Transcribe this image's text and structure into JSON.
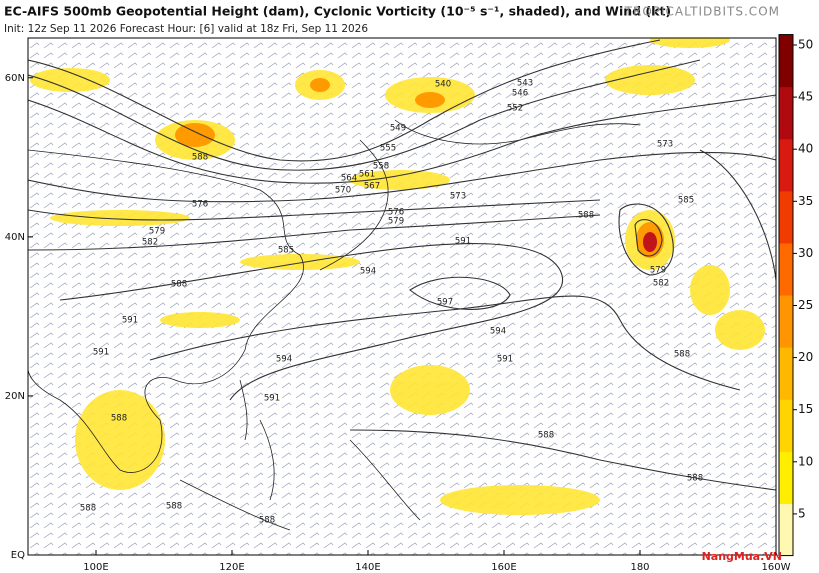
{
  "header": {
    "title": "EC-AIFS 500mb Geopotential Height (dam), Cyclonic Vorticity (10⁻⁵ s⁻¹, shaded), and Wind (kt)",
    "subtitle": "Init: 12z Sep 11 2026   Forecast Hour: [6]   valid at 18z Fri, Sep 11 2026",
    "site": "TROPICALTIDBITS.COM"
  },
  "map": {
    "lat_range": [
      0,
      65
    ],
    "lon_range": [
      90,
      200
    ],
    "lat_ticks": [
      {
        "value": 60,
        "label": "60N"
      },
      {
        "value": 40,
        "label": "40N"
      },
      {
        "value": 20,
        "label": "20N"
      },
      {
        "value": 0,
        "label": "EQ"
      }
    ],
    "lon_ticks": [
      {
        "value": 100,
        "label": "100E"
      },
      {
        "value": 120,
        "label": "120E"
      },
      {
        "value": 140,
        "label": "140E"
      },
      {
        "value": 160,
        "label": "160E"
      },
      {
        "value": 180,
        "label": "180"
      },
      {
        "value": 200,
        "label": "160W"
      }
    ],
    "contour_labels": [
      "540",
      "543",
      "546",
      "552",
      "549",
      "555",
      "558",
      "561",
      "564",
      "567",
      "570",
      "573",
      "573",
      "576",
      "576",
      "579",
      "579",
      "582",
      "585",
      "588",
      "588",
      "588",
      "591",
      "594",
      "597",
      "591",
      "594",
      "591",
      "594",
      "591",
      "591",
      "588",
      "588",
      "588",
      "585",
      "579",
      "582",
      "588",
      "588",
      "588",
      "588"
    ]
  },
  "colorbar": {
    "lim": [
      1,
      51
    ],
    "ticks": [
      5,
      10,
      15,
      20,
      25,
      30,
      35,
      40,
      45,
      50
    ]
  },
  "watermark": "NangMua.VN"
}
